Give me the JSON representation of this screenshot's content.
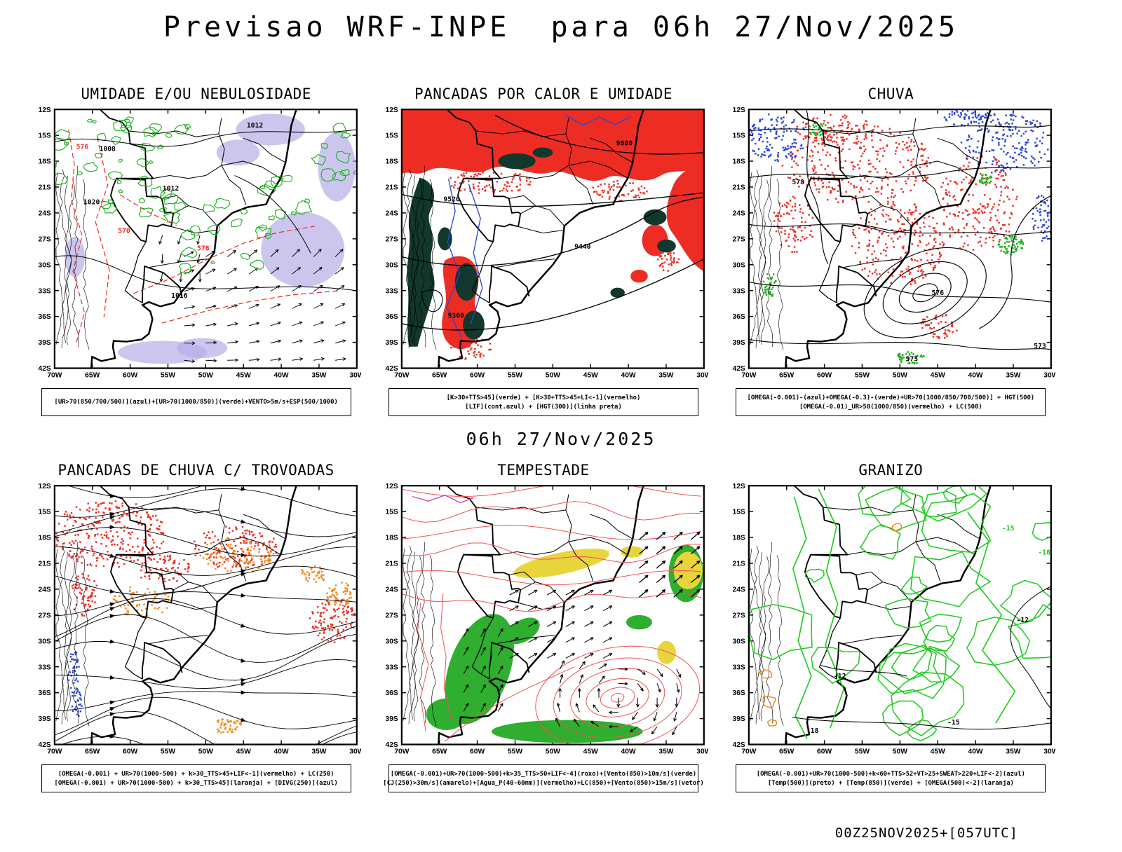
{
  "page": {
    "title": "Previsao WRF-INPE  para 06h 27/Nov/2025",
    "valid_time": "06h 27/Nov/2025",
    "run_stamp": "00Z25NOV2025+[057UTC]"
  },
  "axes": {
    "lat_labels": [
      "12S",
      "15S",
      "18S",
      "21S",
      "24S",
      "27S",
      "30S",
      "33S",
      "36S",
      "39S",
      "42S"
    ],
    "lon_labels": [
      "70W",
      "65W",
      "60W",
      "55W",
      "50W",
      "45W",
      "40W",
      "35W",
      "30W"
    ]
  },
  "panels": [
    {
      "id": "umidade-nebulosidade",
      "title": "UMIDADE E/OU NEBULOSIDADE",
      "legend_lines": [
        "[UR>70(850/700/500)](azul)+[UR>70(1000/850)](verde)+VENTO>5m/s+ESP(500/1000)"
      ],
      "map_labels": {
        "black": [
          "1012",
          "1008",
          "1012",
          "1016",
          "1020"
        ],
        "red": [
          "576",
          "570",
          "578"
        ]
      }
    },
    {
      "id": "pancadas-calor-umidade",
      "title": "PANCADAS POR CALOR E UMIDADE",
      "legend_lines": [
        "[K>30+TTS>45](verde) + [K>30+TTS>45+LI<-1](vermelho)",
        "[LIF](cont.azul) + [HGT(300)](linha preta)"
      ],
      "map_labels": {
        "black": [
          "9600",
          "9520",
          "9440",
          "9360"
        ]
      }
    },
    {
      "id": "chuva",
      "title": "CHUVA",
      "legend_lines": [
        "[OMEGA(-0.001)-(azul)+OMEGA(-0.3)-(verde)+UR>70(1000/850/700/500)] + HGT(500)",
        "[OMEGA(-0.01)_UR>50(1000/850)(vermelho) + LC(500)"
      ],
      "map_labels": {
        "black": [
          "578",
          "576",
          "573",
          "573"
        ]
      }
    },
    {
      "id": "pancadas-chuva-trovoadas",
      "title": "PANCADAS DE CHUVA C/ TROVOADAS",
      "legend_lines": [
        "[OMEGA(-0.001) + UR>70(1000-500) + k>30_TTS>45+LIF<-1](vermelho) + LC(250)",
        "[OMEGA(-0.001) + UR>70(1000-500) + k>30_TTS>45](laranja) + [DIVG(250)](azul)"
      ]
    },
    {
      "id": "tempestade",
      "title": "TEMPESTADE",
      "legend_lines": [
        "[OMEGA(-0.001)+UR>70(1000-500)+k>35_TTS>50+LIF<-4](roxo)+[Vento(850)>10m/s](verde)",
        "[CJ(250)>30m/s](amarelo)+[Agua_P(40-60mm)](vermelho)+LC(850)+[Vento(850)>15m/s](vetor)"
      ]
    },
    {
      "id": "granizo",
      "title": "GRANIZO",
      "legend_lines": [
        "[OMEGA(-0.001)+UR>70(1000-500)+k<60+TTS>52+VT>25+SWEAT>220+LIF<-2](azul)",
        "[Temp(500)](preto) + [Temp(850)](verde) + [OMEGA(500)<-2](laranja)"
      ],
      "map_labels": {
        "black": [
          "-12",
          "-15",
          "-18",
          "-12"
        ],
        "green": [
          "-15",
          "-18"
        ]
      }
    }
  ],
  "palette": {
    "red": "#ed2d24",
    "orange": "#f28a1c",
    "blue": "#2b46d9",
    "green": "#19b219",
    "bright_green": "#1ecb1e",
    "dark_teal": "#12372c",
    "lavender": "#b7aee8",
    "yellow": "#e8d53c",
    "green_fill": "#2fae2f",
    "red_contour": "#f05555",
    "magenta": "#cc2fb4",
    "black": "#000000"
  }
}
